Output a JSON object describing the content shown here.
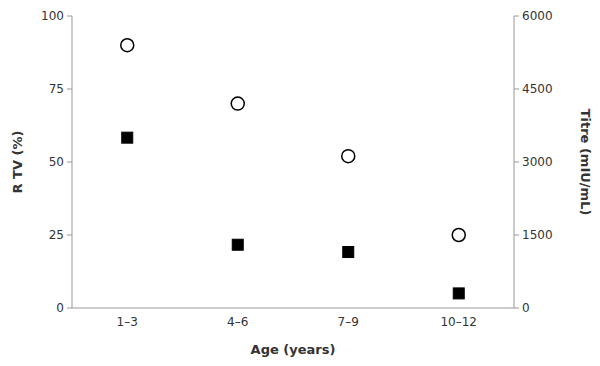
{
  "chart_data": {
    "type": "scatter",
    "categories": [
      "1–3",
      "4–6",
      "7–9",
      "10–12"
    ],
    "x_label": "Age (years)",
    "y_label": "R TV (%)",
    "y2_label": "Titre (mIU/mL)",
    "ylim": [
      0,
      100
    ],
    "yticks": [
      0,
      25,
      50,
      75,
      100
    ],
    "y2lim": [
      0,
      6000
    ],
    "y2ticks": [
      0,
      1500,
      3000,
      4500,
      6000
    ],
    "grid": false,
    "series": [
      {
        "values": [
          90,
          70,
          52,
          25
        ],
        "marker": "open-circle",
        "color": "#000000"
      },
      {
        "values": [
          3500,
          1300,
          1150,
          300
        ],
        "marker": "square",
        "color": "#000000",
        "axis": "y2"
      }
    ]
  }
}
